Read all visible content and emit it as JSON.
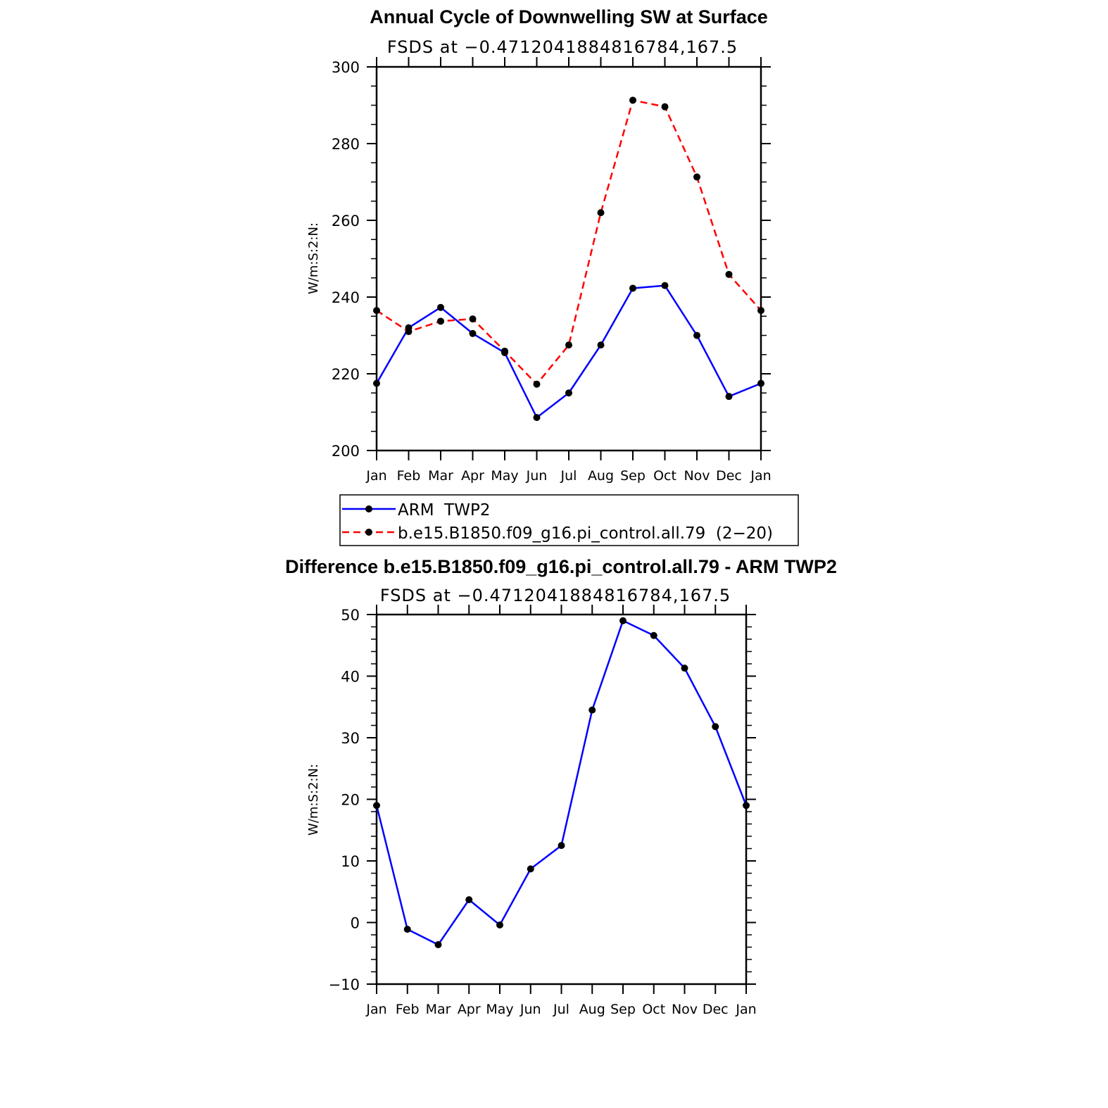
{
  "chart_data": [
    {
      "type": "line",
      "title": "Annual Cycle of Downwelling SW at Surface",
      "subtitle": "FSDS at −0.4712041884816784,167.5",
      "ylabel": "W/m:S:2:N:",
      "xlabel": "",
      "categories": [
        "Jan",
        "Feb",
        "Mar",
        "Apr",
        "May",
        "Jun",
        "Jul",
        "Aug",
        "Sep",
        "Oct",
        "Nov",
        "Dec",
        "Jan"
      ],
      "ylim": [
        200,
        300
      ],
      "yticks": [
        "200",
        "220",
        "240",
        "260",
        "280",
        "300"
      ],
      "grid": false,
      "series": [
        {
          "name": "ARM  TWP2",
          "color": "#0000ff",
          "dash": "solid",
          "values": [
            217.5,
            232.0,
            237.3,
            230.5,
            225.5,
            208.6,
            215.0,
            227.5,
            242.3,
            243.0,
            230.0,
            214.1,
            217.5
          ]
        },
        {
          "name": "b.e15.B1850.f09_g16.pi_control.all.79  (2−20)",
          "color": "#ff0000",
          "dash": "dashed",
          "values": [
            236.5,
            231.0,
            233.7,
            234.3,
            225.9,
            217.3,
            227.5,
            262.0,
            291.3,
            289.6,
            271.3,
            245.9,
            236.5
          ]
        }
      ],
      "legend": "below"
    },
    {
      "type": "line",
      "title": "Difference b.e15.B1850.f09_g16.pi_control.all.79 - ARM TWP2",
      "subtitle": "FSDS at −0.4712041884816784,167.5",
      "ylabel": "W/m:S:2:N:",
      "xlabel": "",
      "categories": [
        "Jan",
        "Feb",
        "Mar",
        "Apr",
        "May",
        "Jun",
        "Jul",
        "Aug",
        "Sep",
        "Oct",
        "Nov",
        "Dec",
        "Jan"
      ],
      "ylim": [
        -10,
        50
      ],
      "yticks": [
        "−10",
        "0",
        "10",
        "20",
        "30",
        "40",
        "50"
      ],
      "grid": false,
      "series": [
        {
          "color": "#0000ff",
          "dash": "solid",
          "values": [
            19.0,
            -1.1,
            -3.6,
            3.7,
            -0.4,
            8.7,
            12.5,
            34.5,
            49.0,
            46.6,
            41.3,
            31.8,
            19.0
          ]
        }
      ]
    }
  ]
}
